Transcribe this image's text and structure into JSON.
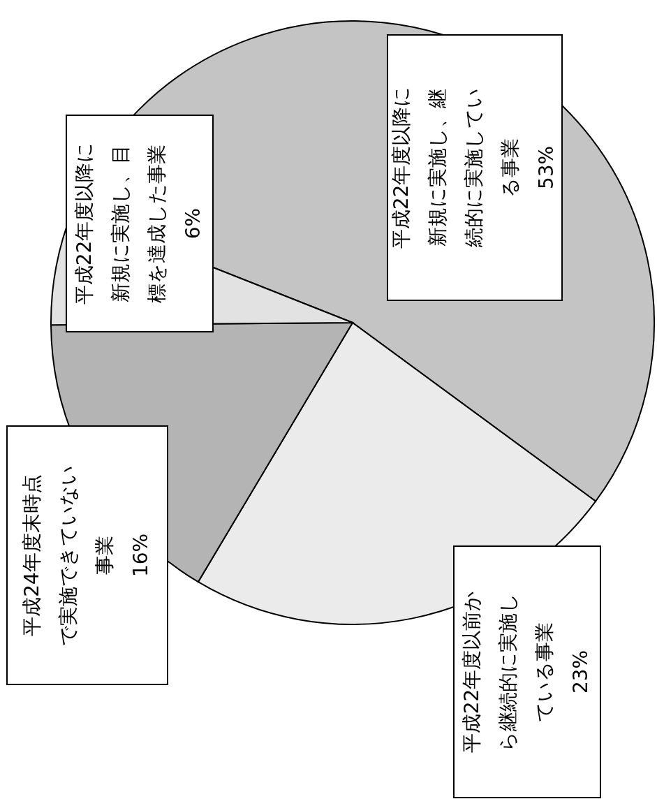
{
  "chart_data": {
    "type": "pie",
    "categories": [
      "平成22年度以降に新規に実施し、継続的に実施している事業",
      "平成22年度以前から継続的に実施している事業",
      "平成24年度末時点で実施できていない事業",
      "平成22年度以降に新規に実施し、目標を達成した事業"
    ],
    "values": [
      53,
      23,
      16,
      6
    ],
    "value_labels": [
      "53%",
      "23%",
      "16%",
      "6%"
    ],
    "colors": [
      "#c4c4c4",
      "#ebebeb",
      "#b4b4b4",
      "#e2e2e2"
    ]
  }
}
